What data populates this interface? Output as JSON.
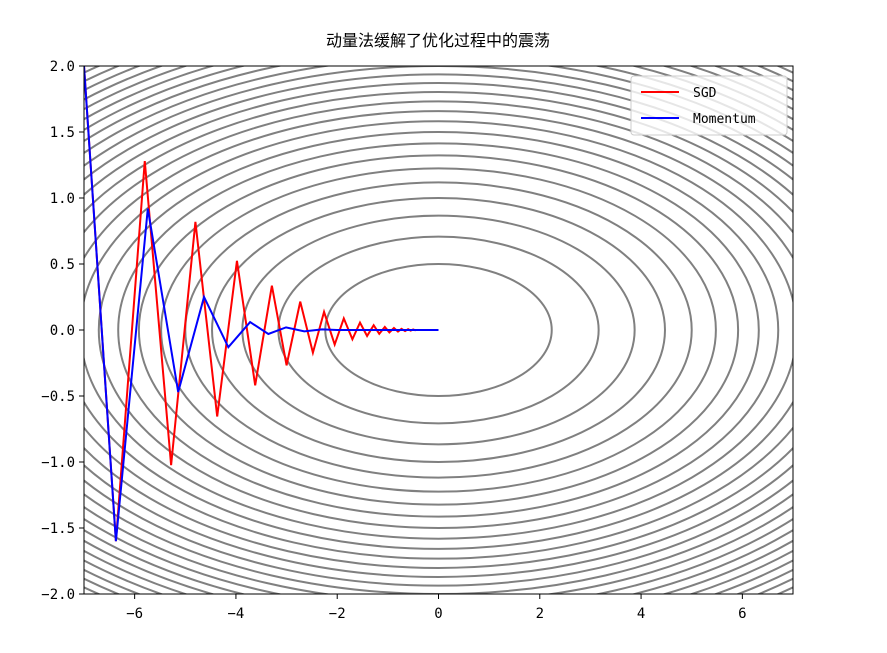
{
  "chart_data": {
    "type": "line",
    "title": "动量法缓解了优化过程中的震荡",
    "xlim": [
      -7,
      7
    ],
    "ylim": [
      -2,
      2
    ],
    "xticks": [
      {
        "value": -6,
        "label": "−6"
      },
      {
        "value": -4,
        "label": "−4"
      },
      {
        "value": -2,
        "label": "−2"
      },
      0,
      2,
      4,
      6
    ],
    "yticks": [
      {
        "value": -2,
        "label": "−2.0"
      },
      {
        "value": -1.5,
        "label": "−1.5"
      },
      {
        "value": -1,
        "label": "−1.0"
      },
      {
        "value": -0.5,
        "label": "−0.5"
      },
      {
        "value": 0,
        "label": "0.0"
      },
      0.5,
      {
        "value": 1,
        "label": "1.0"
      },
      1.5,
      {
        "value": 2,
        "label": "2.0"
      }
    ],
    "legend": "upper right",
    "contour": {
      "color": "#808080",
      "levels": [
        0.5,
        1,
        1.5,
        2,
        2.5,
        3,
        3.5,
        4,
        4.5,
        5,
        5.5,
        6,
        6.5,
        7,
        7.5,
        8,
        8.5,
        9,
        9.5,
        10,
        10.5,
        11,
        11.5,
        12,
        12.5
      ]
    },
    "series": [
      {
        "name": "SGD",
        "color": "#ff0000",
        "x": [
          -7,
          -6.37,
          -5.8,
          -5.28,
          -4.8,
          -4.37,
          -3.98,
          -3.62,
          -3.29,
          -3.0,
          -2.73,
          -2.48,
          -2.26,
          -2.05,
          -1.87,
          -1.7,
          -1.55,
          -1.41,
          -1.28,
          -1.17,
          -1.06,
          -0.97,
          -0.88,
          -0.8,
          -0.73,
          -0.66,
          -0.6,
          -0.55,
          -0.5,
          -0.45
        ],
        "values": [
          2,
          -1.6,
          1.28,
          -1.024,
          0.819,
          -0.655,
          0.524,
          -0.419,
          0.336,
          -0.268,
          0.215,
          -0.172,
          0.137,
          -0.11,
          0.088,
          -0.07,
          0.056,
          -0.045,
          0.036,
          -0.029,
          0.023,
          -0.018,
          0.015,
          -0.012,
          0.009,
          -0.008,
          0.006,
          -0.005,
          0.004,
          -0.003
        ]
      },
      {
        "name": "Momentum",
        "color": "#0000ff",
        "x": [
          -7,
          -6.37,
          -5.74,
          -5.14,
          -4.63,
          -4.15,
          -3.72,
          -3.36,
          -3.01,
          -2.65,
          -2.3,
          -2.0,
          -1.5,
          -1.0,
          -0.5,
          0
        ],
        "values": [
          2,
          -1.6,
          0.92,
          -0.47,
          0.25,
          -0.13,
          0.06,
          -0.03,
          0.02,
          -0.01,
          0.005,
          0,
          0,
          0,
          0,
          0
        ]
      }
    ]
  }
}
